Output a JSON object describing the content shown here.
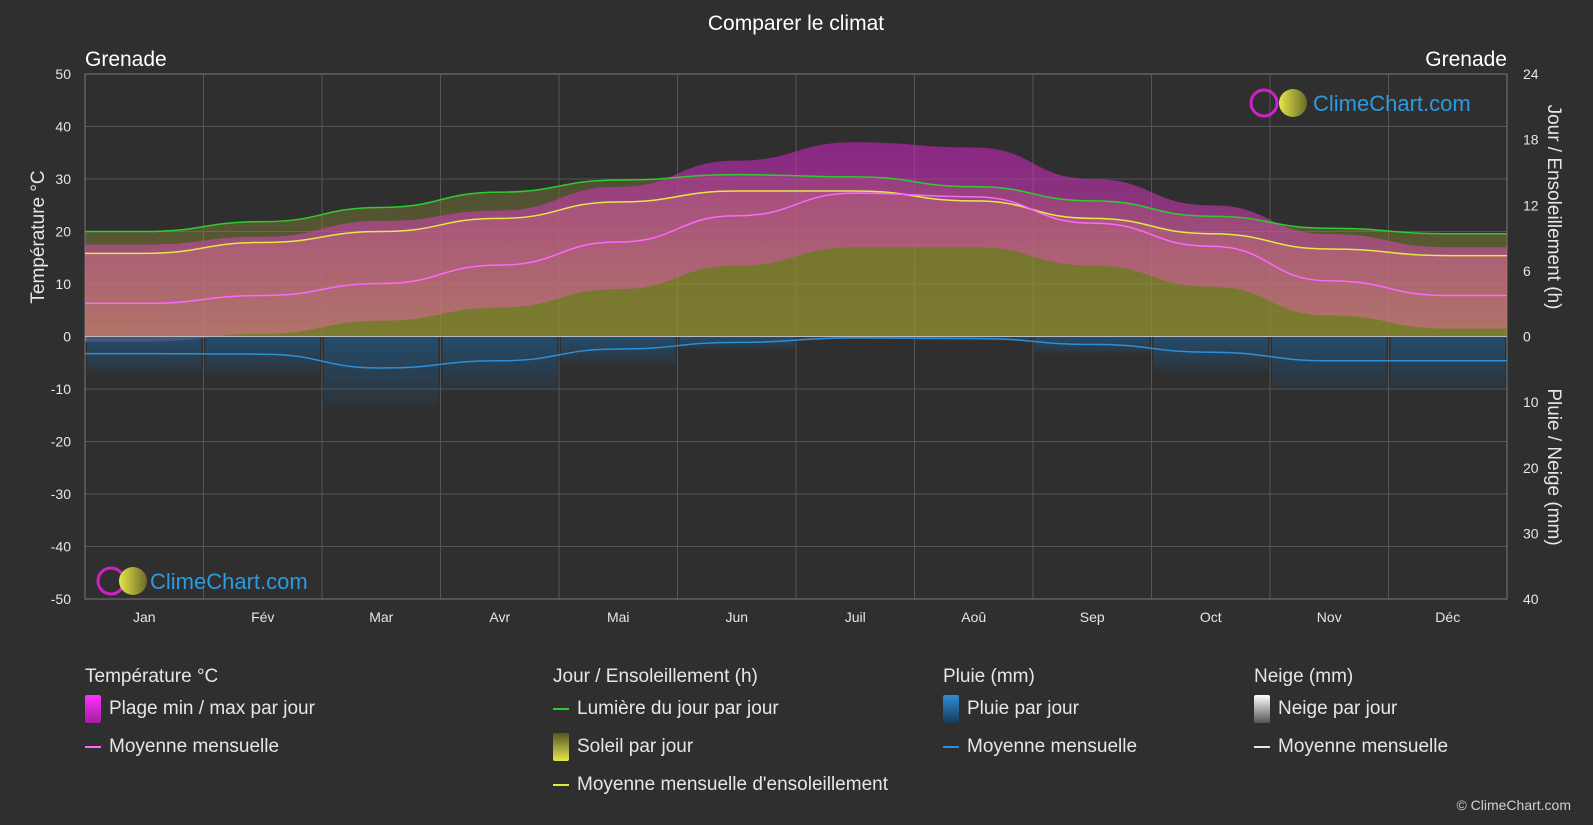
{
  "title": "Comparer le climat",
  "location_left": "Grenade",
  "location_right": "Grenade",
  "axes": {
    "left_label": "Température °C",
    "right_top_label": "Jour / Ensoleillement (h)",
    "right_bottom_label": "Pluie / Neige (mm)",
    "left_ticks": [
      "50",
      "40",
      "30",
      "20",
      "10",
      "0",
      "-10",
      "-20",
      "-30",
      "-40",
      "-50"
    ],
    "right_top_ticks": [
      "24",
      "18",
      "12",
      "6",
      "0"
    ],
    "right_bottom_ticks": [
      "10",
      "20",
      "30",
      "40"
    ]
  },
  "brand": "ClimeChart.com",
  "copyright": "© ClimeChart.com",
  "legend": {
    "temp": {
      "title": "Température °C",
      "range_label": "Plage min / max par jour",
      "mean_label": "Moyenne mensuelle"
    },
    "sun": {
      "title": "Jour / Ensoleillement (h)",
      "daylight_label": "Lumière du jour par jour",
      "sun_label": "Soleil par jour",
      "sun_mean_label": "Moyenne mensuelle d'ensoleillement"
    },
    "rain": {
      "title": "Pluie (mm)",
      "rain_label": "Pluie par jour",
      "mean_label": "Moyenne mensuelle"
    },
    "snow": {
      "title": "Neige (mm)",
      "snow_label": "Neige par jour",
      "mean_label": "Moyenne mensuelle"
    }
  },
  "colors": {
    "background": "#2f2f2f",
    "daylight": "#2ecc2e",
    "sun_mean": "#e6e64a",
    "temp_mean": "#ff66ff",
    "rain_mean": "#2b8fd8",
    "temp_range": "#d020c8",
    "sun_fill": "#a8a832",
    "rain_fill": "#1e5a8a",
    "brand_blue": "#2b9be0"
  },
  "chart_data": {
    "type": "line",
    "categories": [
      "Jan",
      "Fév",
      "Mar",
      "Avr",
      "Mai",
      "Jun",
      "Juil",
      "Aoû",
      "Sep",
      "Oct",
      "Nov",
      "Déc"
    ],
    "ylim_temp": [
      -50,
      50
    ],
    "ylim_hours": [
      0,
      24
    ],
    "ylim_precip_mm": [
      0,
      40
    ],
    "grid": true,
    "series": [
      {
        "name": "Lumière du jour par jour",
        "axis": "hours",
        "values": [
          9.6,
          10.5,
          11.8,
          13.2,
          14.3,
          14.8,
          14.6,
          13.7,
          12.4,
          11.0,
          9.9,
          9.4
        ]
      },
      {
        "name": "Moyenne mensuelle d'ensoleillement",
        "axis": "hours",
        "values": [
          7.6,
          8.6,
          9.6,
          10.8,
          12.3,
          13.3,
          13.3,
          12.4,
          10.8,
          9.4,
          8.0,
          7.4
        ]
      },
      {
        "name": "Température moyenne mensuelle",
        "axis": "temp",
        "values": [
          6.3,
          7.8,
          10.1,
          13.6,
          18.0,
          23.0,
          27.3,
          26.6,
          21.6,
          17.2,
          10.6,
          7.8
        ]
      },
      {
        "name": "Température max moyenne",
        "axis": "temp",
        "values": [
          17.5,
          19.0,
          22.0,
          24.0,
          28.5,
          33.5,
          37.0,
          36.0,
          30.0,
          25.0,
          19.5,
          17.0
        ]
      },
      {
        "name": "Température min moyenne",
        "axis": "temp",
        "values": [
          -1.0,
          0.5,
          3.0,
          5.5,
          9.0,
          13.5,
          17.0,
          17.0,
          13.5,
          9.5,
          4.0,
          1.5
        ]
      },
      {
        "name": "Pluie moyenne mensuelle",
        "axis": "precip",
        "values": [
          2.6,
          2.7,
          4.8,
          3.7,
          1.9,
          0.9,
          0.2,
          0.3,
          1.2,
          2.4,
          3.7,
          3.7
        ]
      },
      {
        "name": "Neige moyenne mensuelle",
        "axis": "precip",
        "values": [
          0,
          0,
          0,
          0,
          0,
          0,
          0,
          0,
          0,
          0,
          0,
          0
        ]
      }
    ]
  }
}
